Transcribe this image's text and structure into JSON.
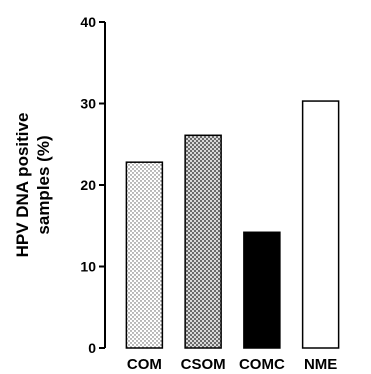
{
  "chart_data": {
    "type": "bar",
    "categories": [
      "COM",
      "CSOM",
      "COMC",
      "NME"
    ],
    "values": [
      22.8,
      26.1,
      14.2,
      30.3
    ],
    "ylabel_line1": "HPV  DNA positive",
    "ylabel_line2": "samples (%)",
    "xlabel": "",
    "ylim": [
      0,
      40
    ],
    "yticks": [
      "0",
      "10",
      "20",
      "30",
      "40"
    ],
    "fills": [
      "dots",
      "checker",
      "solid-black",
      "white"
    ],
    "grid": false,
    "legend": "none"
  }
}
